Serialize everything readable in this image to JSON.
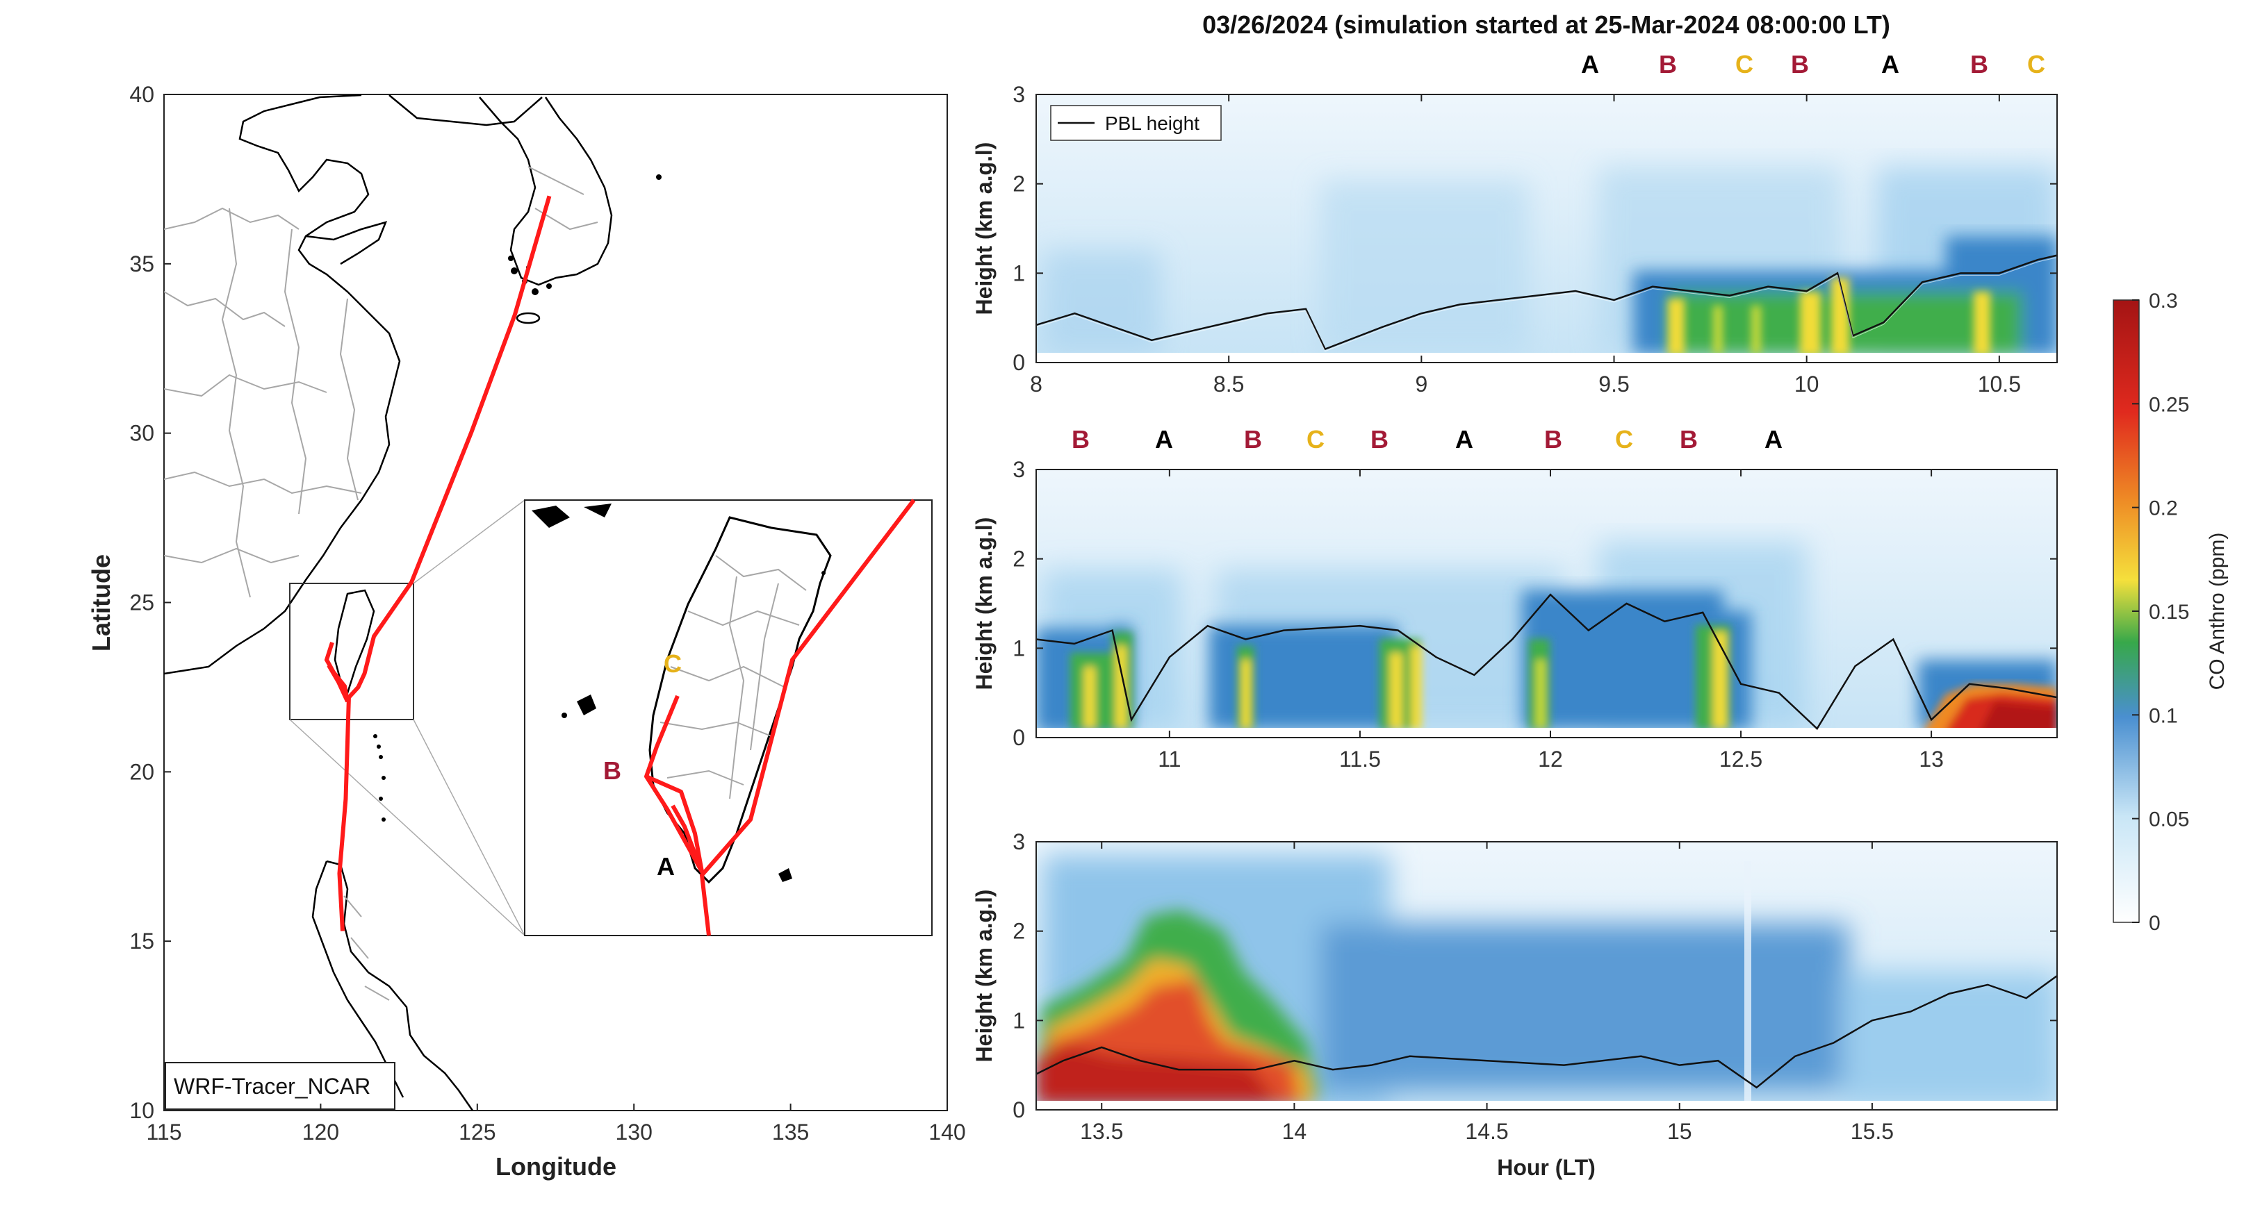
{
  "figure": {
    "title": "03/26/2024 (simulation started at 25-Mar-2024 08:00:00 LT)"
  },
  "map": {
    "xlabel": "Longitude",
    "ylabel": "Latitude",
    "xticks": [
      "115",
      "120",
      "125",
      "130",
      "135",
      "140"
    ],
    "yticks": [
      "40",
      "35",
      "30",
      "25",
      "20",
      "15",
      "10"
    ],
    "model_label": "WRF-Tracer_NCAR",
    "track_color": "#ff1a1a",
    "inset_sites": [
      {
        "id": "C",
        "label": "C",
        "color": "#e6b21a"
      },
      {
        "id": "B",
        "label": "B",
        "color": "#a31a36"
      },
      {
        "id": "A",
        "label": "A",
        "color": "#000000"
      }
    ]
  },
  "colorbar": {
    "label": "CO Anthro (ppm)",
    "ticks": [
      "0.3",
      "0.25",
      "0.2",
      "0.15",
      "0.1",
      "0.05",
      "0"
    ],
    "stops": [
      "#ffffff",
      "#c9e6f6",
      "#4a8fd0",
      "#37a84a",
      "#f5e03c",
      "#ee8a25",
      "#e02a1e",
      "#a41414"
    ]
  },
  "panels": [
    {
      "ylabel": "Height (km a.g.l)",
      "xlabel": "",
      "xticks": [
        "8",
        "8.5",
        "9",
        "9.5",
        "10",
        "10.5"
      ],
      "yticks": [
        "3",
        "2",
        "1",
        "0"
      ],
      "legend": "PBL height",
      "sites": [
        {
          "label": "A",
          "color": "#000000"
        },
        {
          "label": "B",
          "color": "#a31a36"
        },
        {
          "label": "C",
          "color": "#e6b21a"
        },
        {
          "label": "B",
          "color": "#a31a36"
        },
        {
          "label": "A",
          "color": "#000000"
        },
        {
          "label": "B",
          "color": "#a31a36"
        },
        {
          "label": "C",
          "color": "#e6b21a"
        }
      ]
    },
    {
      "ylabel": "Height (km a.g.l)",
      "xlabel": "",
      "xticks": [
        "11",
        "11.5",
        "12",
        "12.5",
        "13"
      ],
      "yticks": [
        "3",
        "2",
        "1",
        "0"
      ],
      "sites": [
        {
          "label": "B",
          "color": "#a31a36"
        },
        {
          "label": "A",
          "color": "#000000"
        },
        {
          "label": "B",
          "color": "#a31a36"
        },
        {
          "label": "C",
          "color": "#e6b21a"
        },
        {
          "label": "B",
          "color": "#a31a36"
        },
        {
          "label": "A",
          "color": "#000000"
        },
        {
          "label": "B",
          "color": "#a31a36"
        },
        {
          "label": "C",
          "color": "#e6b21a"
        },
        {
          "label": "B",
          "color": "#a31a36"
        },
        {
          "label": "A",
          "color": "#000000"
        }
      ]
    },
    {
      "ylabel": "Height (km a.g.l)",
      "xlabel": "Hour (LT)",
      "xticks": [
        "13.5",
        "14",
        "14.5",
        "15",
        "15.5"
      ],
      "yticks": [
        "3",
        "2",
        "1",
        "0"
      ]
    }
  ],
  "chart_data": [
    {
      "type": "line",
      "title": "",
      "xlabel": "Longitude",
      "ylabel": "Latitude",
      "xlim": [
        115,
        140
      ],
      "ylim": [
        10,
        40
      ],
      "series": [
        {
          "x": [
            127.3,
            126.2,
            124.8,
            122.9,
            121.7,
            121.4,
            121.2,
            120.9,
            120.8,
            120.6,
            120.7
          ],
          "y": [
            37.0,
            33.5,
            30.0,
            25.6,
            24.0,
            22.9,
            22.5,
            22.2,
            19.2,
            17.0,
            15.3
          ]
        }
      ]
    },
    {
      "type": "line",
      "title": "",
      "xlabel": "",
      "ylabel": "Height (km a.g.l)",
      "xlim": [
        8.0,
        10.65
      ],
      "ylim": [
        0,
        3
      ],
      "series": [
        {
          "name": "PBL height",
          "x": [
            8.0,
            8.1,
            8.2,
            8.3,
            8.4,
            8.5,
            8.6,
            8.7,
            8.75,
            8.9,
            9.0,
            9.1,
            9.2,
            9.3,
            9.4,
            9.5,
            9.6,
            9.7,
            9.8,
            9.9,
            10.0,
            10.08,
            10.12,
            10.2,
            10.3,
            10.4,
            10.5,
            10.6,
            10.65
          ],
          "y": [
            0.42,
            0.55,
            0.4,
            0.25,
            0.35,
            0.45,
            0.55,
            0.6,
            0.15,
            0.4,
            0.55,
            0.65,
            0.7,
            0.75,
            0.8,
            0.7,
            0.85,
            0.8,
            0.75,
            0.85,
            0.8,
            1.0,
            0.3,
            0.45,
            0.9,
            1.0,
            1.0,
            1.15,
            1.2
          ]
        }
      ]
    },
    {
      "type": "line",
      "title": "",
      "xlabel": "",
      "ylabel": "Height (km a.g.l)",
      "xlim": [
        10.65,
        13.33
      ],
      "ylim": [
        0,
        3
      ],
      "series": [
        {
          "x": [
            10.65,
            10.75,
            10.85,
            10.9,
            11.0,
            11.1,
            11.2,
            11.3,
            11.5,
            11.6,
            11.7,
            11.8,
            11.9,
            12.0,
            12.1,
            12.2,
            12.3,
            12.4,
            12.5,
            12.6,
            12.7,
            12.8,
            12.9,
            13.0,
            13.1,
            13.2,
            13.33
          ],
          "y": [
            1.1,
            1.05,
            1.2,
            0.2,
            0.9,
            1.25,
            1.1,
            1.2,
            1.25,
            1.2,
            0.9,
            0.7,
            1.1,
            1.6,
            1.2,
            1.5,
            1.3,
            1.4,
            0.6,
            0.5,
            0.1,
            0.8,
            1.1,
            0.2,
            0.6,
            0.55,
            0.45
          ]
        }
      ]
    },
    {
      "type": "line",
      "title": "",
      "xlabel": "Hour (LT)",
      "ylabel": "Height (km a.g.l)",
      "xlim": [
        13.33,
        15.98
      ],
      "ylim": [
        0,
        3
      ],
      "series": [
        {
          "x": [
            13.33,
            13.4,
            13.5,
            13.6,
            13.7,
            13.8,
            13.9,
            14.0,
            14.1,
            14.2,
            14.3,
            14.5,
            14.7,
            14.9,
            15.0,
            15.1,
            15.2,
            15.3,
            15.4,
            15.5,
            15.6,
            15.7,
            15.8,
            15.9,
            15.98
          ],
          "y": [
            0.4,
            0.55,
            0.7,
            0.55,
            0.45,
            0.45,
            0.45,
            0.55,
            0.45,
            0.5,
            0.6,
            0.55,
            0.5,
            0.6,
            0.5,
            0.55,
            0.25,
            0.6,
            0.75,
            1.0,
            1.1,
            1.3,
            1.4,
            1.25,
            1.5
          ]
        }
      ]
    }
  ]
}
